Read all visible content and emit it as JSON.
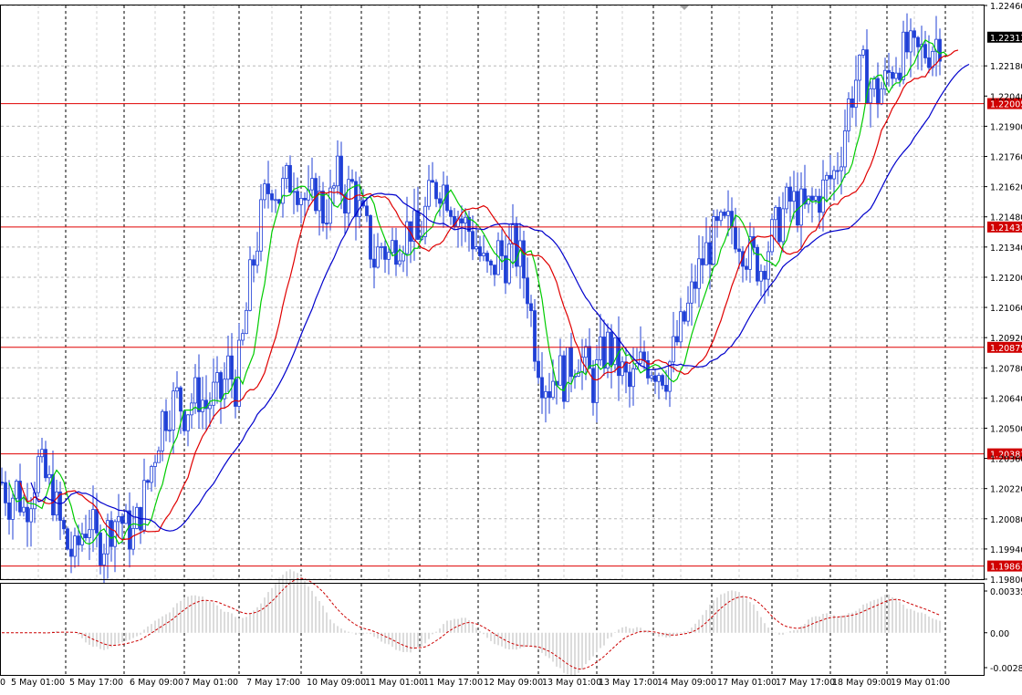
{
  "chart_data": {
    "type": "candlestick",
    "symbol_note": "",
    "price_axis": {
      "min": 1.198,
      "max": 1.2246,
      "ticks": [
        "1.22460",
        "1.22180",
        "1.21900",
        "1.21760",
        "1.21620",
        "1.21480",
        "1.21340",
        "1.21200",
        "1.21060",
        "1.20920",
        "1.20780",
        "1.20640",
        "1.20500",
        "1.20220",
        "1.20080",
        "1.19940",
        "1.19800"
      ],
      "partial_ticks": [
        "1.22040",
        "1.20360"
      ],
      "current_price": "1.22313"
    },
    "horizontal_levels": [
      "1.22005",
      "1.21433",
      "1.20875",
      "1.20381",
      "1.19861"
    ],
    "time_labels": [
      "0",
      "5 May 01:00",
      "5 May 17:00",
      "6 May 09:00",
      "7 May 01:00",
      "7 May 17:00",
      "10 May 09:00",
      "11 May 01:00",
      "11 May 17:00",
      "12 May 09:00",
      "13 May 01:00",
      "13 May 17:00",
      "14 May 09:00",
      "17 May 01:00",
      "17 May 17:00",
      "18 May 09:00",
      "19 May 01:00"
    ],
    "price_path": [
      [
        0,
        1.2025
      ],
      [
        2,
        1.2017
      ],
      [
        4,
        1.2022
      ],
      [
        6,
        1.2012
      ],
      [
        8,
        1.2021
      ],
      [
        10,
        1.2033
      ],
      [
        12,
        1.2026
      ],
      [
        14,
        1.2019
      ],
      [
        16,
        1.2005
      ],
      [
        18,
        1.1995
      ],
      [
        20,
        1.199
      ],
      [
        22,
        1.2002
      ],
      [
        24,
        1.2008
      ],
      [
        26,
        1.1996
      ],
      [
        28,
        1.1998
      ],
      [
        30,
        1.2006
      ],
      [
        32,
        1.201
      ],
      [
        34,
        1.2003
      ],
      [
        36,
        1.2
      ],
      [
        38,
        1.2012
      ],
      [
        40,
        1.2025
      ],
      [
        42,
        1.204
      ],
      [
        44,
        1.2055
      ],
      [
        46,
        1.206
      ],
      [
        48,
        1.2064
      ],
      [
        50,
        1.2058
      ],
      [
        52,
        1.2063
      ],
      [
        54,
        1.2066
      ],
      [
        56,
        1.206
      ],
      [
        58,
        1.2065
      ],
      [
        60,
        1.2065
      ],
      [
        62,
        1.2078
      ],
      [
        64,
        1.207
      ],
      [
        66,
        1.209
      ],
      [
        68,
        1.2118
      ],
      [
        70,
        1.2138
      ],
      [
        72,
        1.2156
      ],
      [
        74,
        1.2165
      ],
      [
        76,
        1.2158
      ],
      [
        78,
        1.2163
      ],
      [
        80,
        1.2168
      ],
      [
        82,
        1.216
      ],
      [
        84,
        1.2152
      ],
      [
        86,
        1.216
      ],
      [
        88,
        1.215
      ],
      [
        90,
        1.2155
      ],
      [
        92,
        1.2166
      ],
      [
        94,
        1.2158
      ],
      [
        96,
        1.2162
      ],
      [
        98,
        1.215
      ],
      [
        100,
        1.214
      ],
      [
        102,
        1.2128
      ],
      [
        104,
        1.2135
      ],
      [
        106,
        1.213
      ],
      [
        108,
        1.2137
      ],
      [
        110,
        1.214
      ],
      [
        112,
        1.2144
      ],
      [
        114,
        1.2136
      ],
      [
        116,
        1.215
      ],
      [
        118,
        1.216
      ],
      [
        120,
        1.2164
      ],
      [
        122,
        1.216
      ],
      [
        124,
        1.2152
      ],
      [
        126,
        1.2146
      ],
      [
        128,
        1.2142
      ],
      [
        130,
        1.2135
      ],
      [
        132,
        1.2125
      ],
      [
        134,
        1.212
      ],
      [
        136,
        1.2132
      ],
      [
        138,
        1.2128
      ],
      [
        140,
        1.2134
      ],
      [
        142,
        1.2128
      ],
      [
        144,
        1.2115
      ],
      [
        146,
        1.209
      ],
      [
        148,
        1.2075
      ],
      [
        150,
        1.207
      ],
      [
        152,
        1.2078
      ],
      [
        154,
        1.2073
      ],
      [
        156,
        1.208
      ],
      [
        158,
        1.2085
      ],
      [
        160,
        1.2078
      ],
      [
        162,
        1.207
      ],
      [
        164,
        1.2082
      ],
      [
        166,
        1.2088
      ],
      [
        168,
        1.2082
      ],
      [
        170,
        1.2075
      ],
      [
        172,
        1.2068
      ],
      [
        174,
        1.2076
      ],
      [
        176,
        1.2082
      ],
      [
        178,
        1.208
      ],
      [
        180,
        1.2078
      ],
      [
        182,
        1.2076
      ],
      [
        184,
        1.2085
      ],
      [
        186,
        1.2095
      ],
      [
        188,
        1.2105
      ],
      [
        190,
        1.2118
      ],
      [
        192,
        1.2128
      ],
      [
        194,
        1.2135
      ],
      [
        196,
        1.214
      ],
      [
        198,
        1.2142
      ],
      [
        200,
        1.2144
      ],
      [
        202,
        1.214
      ],
      [
        204,
        1.2132
      ],
      [
        206,
        1.2128
      ],
      [
        208,
        1.2125
      ],
      [
        210,
        1.2135
      ],
      [
        212,
        1.2142
      ],
      [
        214,
        1.215
      ],
      [
        216,
        1.2155
      ],
      [
        218,
        1.2153
      ],
      [
        220,
        1.215
      ],
      [
        222,
        1.2154
      ],
      [
        224,
        1.2158
      ],
      [
        226,
        1.2163
      ],
      [
        228,
        1.2168
      ],
      [
        230,
        1.218
      ],
      [
        232,
        1.22
      ],
      [
        234,
        1.2212
      ],
      [
        236,
        1.2215
      ],
      [
        238,
        1.2208
      ],
      [
        240,
        1.2205
      ],
      [
        242,
        1.221
      ],
      [
        244,
        1.2218
      ],
      [
        246,
        1.2222
      ],
      [
        248,
        1.2225
      ],
      [
        250,
        1.2222
      ],
      [
        252,
        1.2224
      ],
      [
        254,
        1.2226
      ],
      [
        256,
        1.223
      ],
      [
        257,
        1.2231
      ]
    ],
    "moving_averages": [
      {
        "color": "#00cc00",
        "period": 5
      },
      {
        "color": "#e00000",
        "period": 12
      },
      {
        "color": "#0000cc",
        "period": 24
      }
    ],
    "oscillator": {
      "ticks": [
        "0.00335",
        "0.00",
        "-0.00280"
      ],
      "min": -0.0028,
      "max": 0.00335
    },
    "colors": {
      "candle": "#1f3fd6",
      "level_line": "#e00000",
      "level_label_bg": "#d00000",
      "histogram": "#b8b8b8",
      "signal": "#cc0000",
      "grid": "#b8b8b8"
    }
  }
}
